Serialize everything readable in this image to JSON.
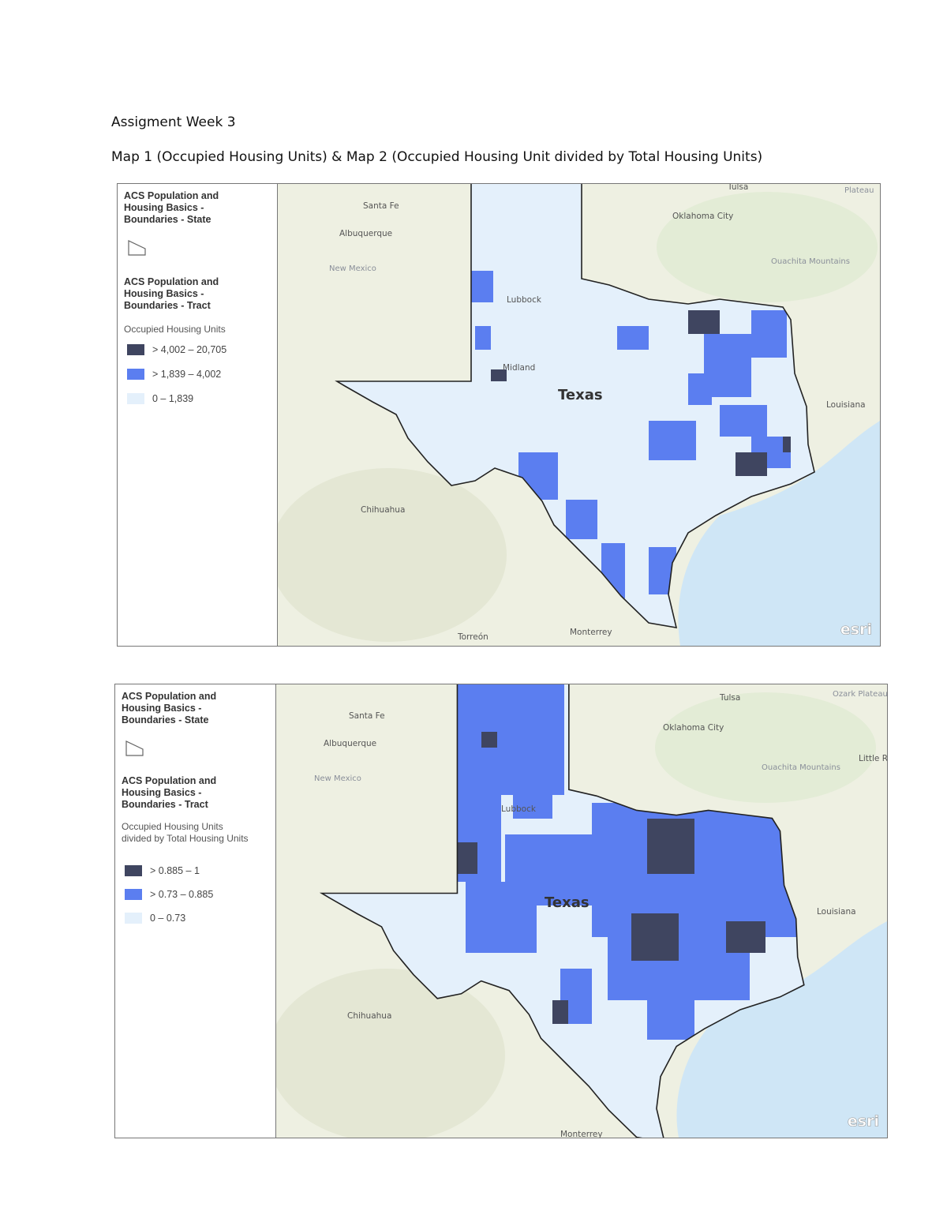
{
  "header": {
    "title": "Assigment Week 3",
    "subtitle": "Map 1 (Occupied Housing Units) & Map 2 (Occupied Housing Unit divided by Total Housing Units)"
  },
  "maps": [
    {
      "legend": {
        "state_layer": "ACS Population and Housing Basics - Boundaries - State",
        "tract_layer": "ACS Population and Housing Basics - Boundaries - Tract",
        "field": "Occupied Housing Units",
        "classes": [
          {
            "label": "> 4,002 – 20,705",
            "color": "#3f4560"
          },
          {
            "label": "> 1,839 – 4,002",
            "color": "#5b7ef0"
          },
          {
            "label": "0 – 1,839",
            "color": "#e4f0fb"
          }
        ]
      },
      "labels": [
        "Santa Fe",
        "Albuquerque",
        "New Mexico",
        "Tulsa",
        "Oklahoma City",
        "Ouachita Mountains",
        "Plateau",
        "Louisiana",
        "Lubbock",
        "Midland",
        "Chihuahua",
        "Torreón",
        "Monterrey"
      ],
      "state_label": "Texas",
      "logo": "esri"
    },
    {
      "legend": {
        "state_layer": "ACS Population and Housing Basics - Boundaries - State",
        "tract_layer": "ACS Population and Housing Basics - Boundaries - Tract",
        "field": "Occupied Housing Units divided by Total Housing Units",
        "classes": [
          {
            "label": "> 0.885 – 1",
            "color": "#3f4560"
          },
          {
            "label": "> 0.73 – 0.885",
            "color": "#5b7ef0"
          },
          {
            "label": "0 – 0.73",
            "color": "#e4f0fb"
          }
        ]
      },
      "labels": [
        "Santa Fe",
        "Albuquerque",
        "New Mexico",
        "Tulsa",
        "Oklahoma City",
        "Ouachita Mountains",
        "Ozark Plateau",
        "Little R",
        "Louisiana",
        "Lubbock",
        "Chihuahua",
        "Monterrey"
      ],
      "state_label": "Texas",
      "logo": "esri"
    }
  ]
}
